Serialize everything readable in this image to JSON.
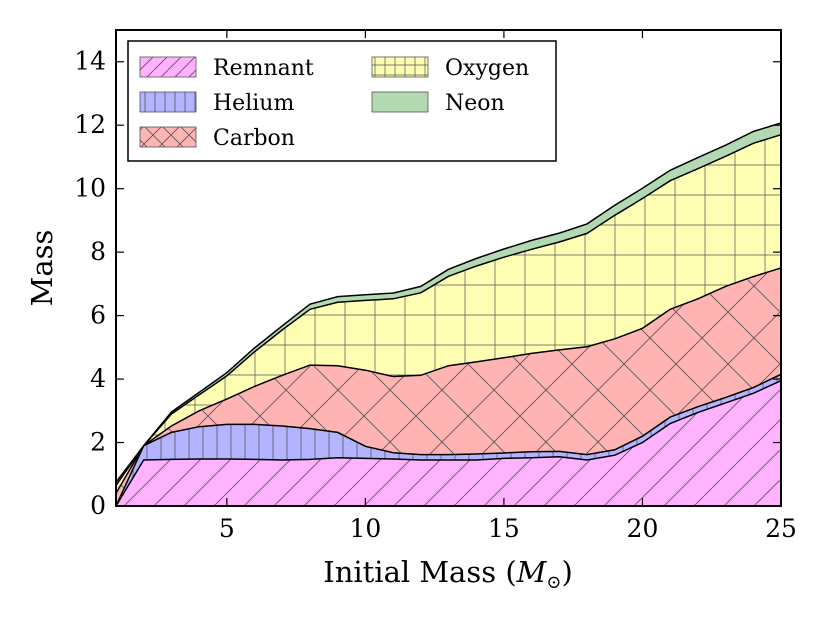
{
  "chart_data": {
    "type": "area",
    "stacked": true,
    "xlabel": "Initial Mass (",
    "xlabel_symbol": "M",
    "xlabel_sub": "⊙",
    "xlabel_close": ")",
    "ylabel": "Mass",
    "xlim": [
      1,
      25
    ],
    "ylim": [
      0,
      15
    ],
    "xticks": [
      5,
      10,
      15,
      20,
      25
    ],
    "yticks": [
      0,
      2,
      4,
      6,
      8,
      10,
      12,
      14
    ],
    "grid": false,
    "legend_position": "top-left",
    "x": [
      1,
      2,
      3,
      4,
      5,
      6,
      7,
      8,
      9,
      10,
      11,
      12,
      13,
      14,
      15,
      16,
      17,
      18,
      19,
      20,
      21,
      22,
      23,
      24,
      25
    ],
    "series": [
      {
        "name": "Remnant",
        "color": "#ff99ff",
        "hatch": "diagonal",
        "values": [
          0.0,
          1.45,
          1.47,
          1.48,
          1.48,
          1.47,
          1.45,
          1.47,
          1.52,
          1.5,
          1.48,
          1.45,
          1.45,
          1.45,
          1.5,
          1.52,
          1.55,
          1.45,
          1.6,
          2.0,
          2.6,
          2.95,
          3.25,
          3.55,
          3.95
        ]
      },
      {
        "name": "Helium",
        "color": "#9999ff",
        "hatch": "vertical",
        "values": [
          0.0,
          0.45,
          0.85,
          1.02,
          1.09,
          1.1,
          1.07,
          0.97,
          0.8,
          0.38,
          0.2,
          0.17,
          0.17,
          0.19,
          0.17,
          0.19,
          0.17,
          0.17,
          0.17,
          0.2,
          0.2,
          0.18,
          0.17,
          0.18,
          0.2
        ]
      },
      {
        "name": "Carbon",
        "color": "#ff9999",
        "hatch": "crosshatch",
        "values": [
          0.4,
          0.0,
          0.2,
          0.5,
          0.8,
          1.2,
          1.6,
          2.0,
          2.1,
          2.4,
          2.4,
          2.5,
          2.8,
          2.9,
          3.0,
          3.1,
          3.2,
          3.4,
          3.5,
          3.4,
          3.4,
          3.4,
          3.5,
          3.5,
          3.35
        ]
      },
      {
        "name": "Oxygen",
        "color": "#ffff99",
        "hatch": "grid",
        "values": [
          0.25,
          0.0,
          0.38,
          0.5,
          0.73,
          1.09,
          1.43,
          1.76,
          2.0,
          2.2,
          2.45,
          2.6,
          2.82,
          3.02,
          3.17,
          3.28,
          3.4,
          3.57,
          3.89,
          4.09,
          4.05,
          4.1,
          4.1,
          4.2,
          4.2
        ]
      },
      {
        "name": "Neon",
        "color": "#99cc99",
        "hatch": "none",
        "values": [
          0.1,
          0.0,
          0.06,
          0.08,
          0.1,
          0.12,
          0.13,
          0.16,
          0.18,
          0.18,
          0.18,
          0.2,
          0.22,
          0.24,
          0.26,
          0.28,
          0.28,
          0.3,
          0.32,
          0.32,
          0.33,
          0.35,
          0.35,
          0.37,
          0.37
        ]
      }
    ]
  }
}
